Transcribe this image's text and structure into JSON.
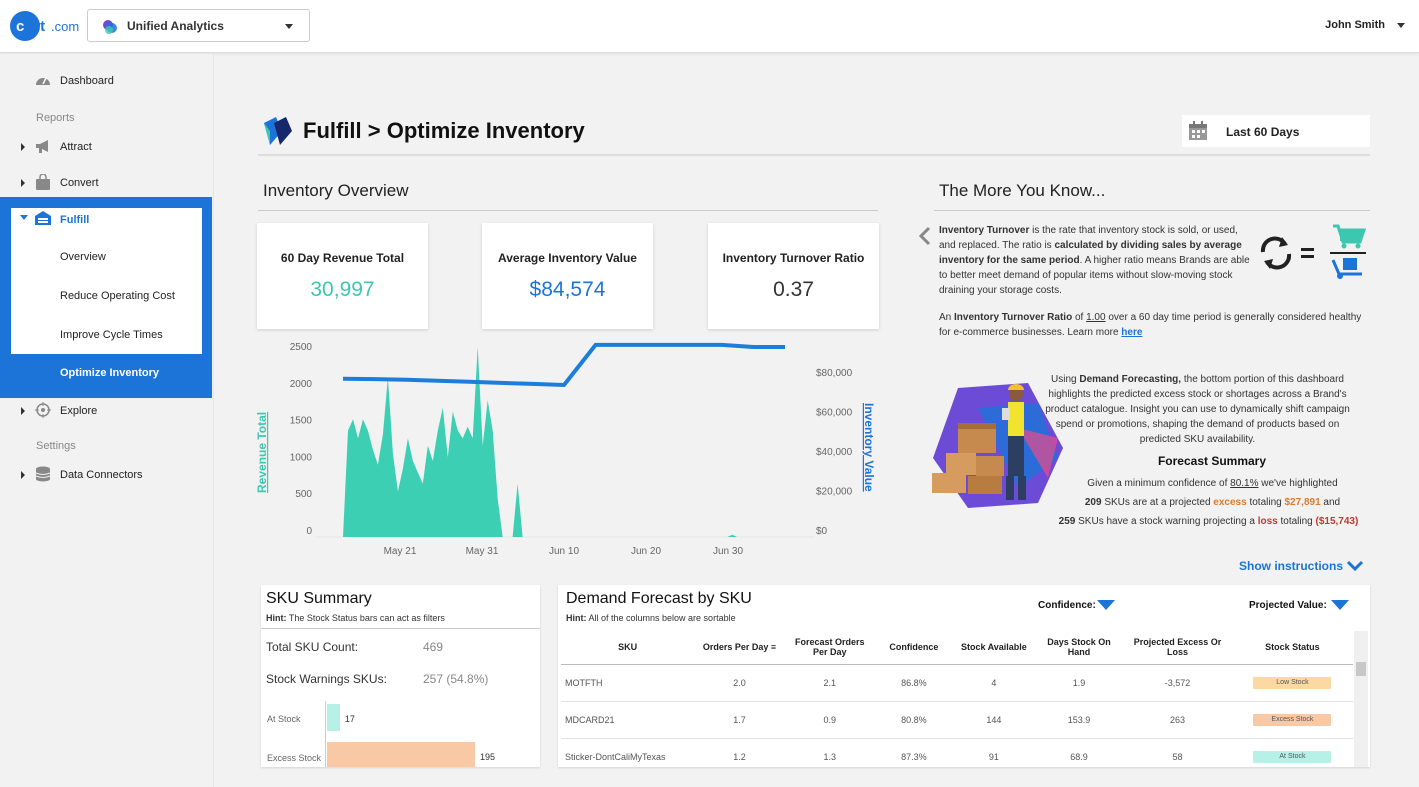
{
  "header": {
    "logo_text": "cart.com",
    "app_name": "Unified Analytics",
    "user_name": "John Smith"
  },
  "sidebar": {
    "dashboard": "Dashboard",
    "reports_label": "Reports",
    "attract": "Attract",
    "convert": "Convert",
    "fulfill": "Fulfill",
    "fulfill_sub": [
      "Overview",
      "Reduce Operating Cost",
      "Improve Cycle Times"
    ],
    "active_item": "Optimize Inventory",
    "explore": "Explore",
    "settings_label": "Settings",
    "data_connectors": "Data Connectors"
  },
  "page": {
    "title": "Fulfill > Optimize Inventory",
    "date_range": "Last 60 Days"
  },
  "overview": {
    "section_title": "Inventory Overview",
    "kpis": [
      {
        "label": "60 Day Revenue Total",
        "value": "30,997",
        "color": "#3cc8b0"
      },
      {
        "label": "Average Inventory Value",
        "value": "$84,574",
        "color": "#1c74d9"
      },
      {
        "label": "Inventory Turnover Ratio",
        "value": "0.37",
        "color": "#333333"
      }
    ]
  },
  "chart_data": {
    "type": "area",
    "x_ticks": [
      "May 21",
      "May 31",
      "Jun 10",
      "Jun 20",
      "Jun 30"
    ],
    "ylabel": "Revenue Total",
    "y2label": "Inventory Value",
    "y_ticks": [
      "2500",
      "2000",
      "1500",
      "1000",
      "500",
      "0"
    ],
    "y2_ticks": [
      "$80,000",
      "$60,000",
      "$40,000",
      "$20,000",
      "$0"
    ],
    "ylim": [
      0,
      2500
    ],
    "y2lim": [
      0,
      90000
    ],
    "series": [
      {
        "name": "Revenue Total",
        "color": "#3dcfb3",
        "values": [
          0,
          1400,
          1550,
          1300,
          1550,
          1400,
          1150,
          950,
          1350,
          2100,
          1100,
          600,
          900,
          1300,
          1000,
          850,
          700,
          1200,
          1000,
          1400,
          1700,
          1050,
          1650,
          1400,
          1300,
          1450,
          1300,
          2500,
          1200,
          1800,
          1400,
          500,
          0,
          0,
          0,
          700,
          0,
          0,
          0,
          0,
          0,
          0,
          0,
          0,
          0,
          0,
          0,
          0,
          0,
          0,
          0,
          0,
          0,
          0,
          0,
          0,
          0,
          0,
          0,
          0,
          0,
          0,
          0,
          0,
          0,
          0,
          0,
          0,
          0,
          0,
          0,
          0,
          0,
          0,
          0,
          0,
          0,
          0,
          30,
          0,
          0,
          0,
          0,
          0,
          0,
          0,
          0,
          0,
          0,
          0,
          0,
          0,
          0,
          0,
          0
        ]
      },
      {
        "name": "Inventory Value",
        "color": "#1c7ddb",
        "values": [
          75000,
          74800,
          74500,
          74000,
          73500,
          73000,
          72500,
          72000,
          91000,
          91000,
          91000,
          91000,
          91000,
          90000,
          90000
        ]
      }
    ]
  },
  "more_you_know": {
    "title": "The More You Know...",
    "para1_a": "Inventory Turnover",
    "para1_b": " is the rate that inventory stock is sold, or used, and replaced. The ratio is ",
    "para1_c": "calculated by dividing sales by average inventory for the same period",
    "para1_d": ". A higher ratio means Brands are able to better meet demand of popular items without slow-moving stock draining your storage costs.",
    "para2_a": "An ",
    "para2_b": "Inventory Turnover Ratio",
    "para2_c": " of ",
    "para2_d": "1.00",
    "para2_e": " over a 60 day time period is generally considered healthy for e-commerce businesses.  Learn more ",
    "link": "here",
    "para3_a": "Using ",
    "para3_b": "Demand Forecasting,",
    "para3_c": " the bottom portion of this dashboard highlights the predicted excess stock or shortages across a Brand's product catalogue. Insight you can use to dynamically shift campaign spend or promotions, shaping the demand of products based on predicted SKU availability.",
    "forecast_title": "Forecast Summary",
    "fs1_a": "Given a minimum confidence of ",
    "fs1_b": "80.1%",
    "fs1_c": " we've highlighted",
    "fs2_a": "209",
    "fs2_b": " SKUs are at a projected ",
    "fs2_c": "excess",
    "fs2_d": " totaling ",
    "fs2_e": "$27,891",
    "fs2_f": " and",
    "fs3_a": "259",
    "fs3_b": " SKUs have a stock warning projecting a ",
    "fs3_c": "loss",
    "fs3_d": " totaling ",
    "fs3_e": "($15,743)",
    "show_instructions": "Show instructions"
  },
  "sku_summary": {
    "title": "SKU Summary",
    "hint_bold": "Hint:",
    "hint_text": " The Stock Status bars can act as filters",
    "total_label": "Total SKU Count:",
    "total_value": "469",
    "warn_label": "Stock Warnings SKUs:",
    "warn_value": "257 (54.8%)",
    "bars": [
      {
        "label": "At Stock",
        "value": 17,
        "color": "#b7f0e6"
      },
      {
        "label": "Excess Stock",
        "value": 195,
        "color": "#f9c9a6"
      }
    ]
  },
  "demand_forecast": {
    "title": "Demand Forecast by SKU",
    "hint_bold": "Hint:",
    "hint_text": " All of the columns below are sortable",
    "confidence_label": "Confidence:",
    "projected_label": "Projected Value:",
    "columns": [
      "SKU",
      "Orders Per Day",
      "Forecast Orders Per Day",
      "Confidence",
      "Stock Available",
      "Days Stock On Hand",
      "Projected Excess Or Loss",
      "Stock Status"
    ],
    "rows": [
      {
        "sku": "MOTFTH",
        "opd": "2.0",
        "fopd": "2.1",
        "conf": "86.8%",
        "stock": "4",
        "days": "1.9",
        "proj": "-3,572",
        "status": "Low Stock",
        "status_color": "#fbd9a0"
      },
      {
        "sku": "MDCARD21",
        "opd": "1.7",
        "fopd": "0.9",
        "conf": "80.8%",
        "stock": "144",
        "days": "153.9",
        "proj": "263",
        "status": "Excess Stock",
        "status_color": "#f9c9a6"
      },
      {
        "sku": "Sticker-DontCaliMyTexas",
        "opd": "1.2",
        "fopd": "1.3",
        "conf": "87.3%",
        "stock": "91",
        "days": "68.9",
        "proj": "58",
        "status": "At Stock",
        "status_color": "#b7f0e6"
      }
    ]
  }
}
